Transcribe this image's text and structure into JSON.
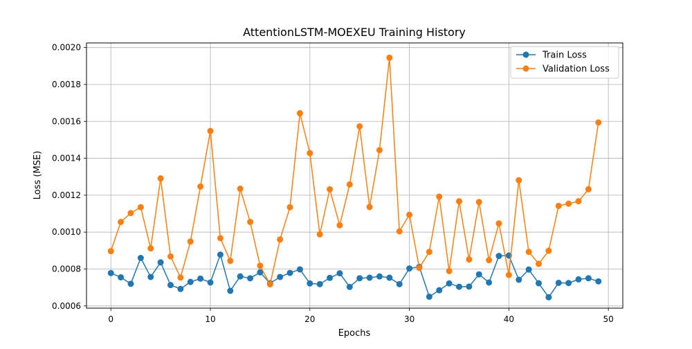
{
  "chart_data": {
    "type": "line",
    "title": "AttentionLSTM-MOEXEU Training History",
    "xlabel": "Epochs",
    "ylabel": "Loss (MSE)",
    "xlim": [
      -2.45,
      51.45
    ],
    "ylim": [
      0.000588,
      0.002025
    ],
    "x_ticks": [
      0,
      10,
      20,
      30,
      40,
      50
    ],
    "x_tick_labels": [
      "0",
      "10",
      "20",
      "30",
      "40",
      "50"
    ],
    "y_ticks": [
      0.0006,
      0.0008,
      0.001,
      0.0012,
      0.0014,
      0.0016,
      0.0018,
      0.002
    ],
    "y_tick_labels": [
      "0.0006",
      "0.0008",
      "0.0010",
      "0.0012",
      "0.0014",
      "0.0016",
      "0.0018",
      "0.0020"
    ],
    "grid": true,
    "legend_position": "top-right",
    "x": [
      0,
      1,
      2,
      3,
      4,
      5,
      6,
      7,
      8,
      9,
      10,
      11,
      12,
      13,
      14,
      15,
      16,
      17,
      18,
      19,
      20,
      21,
      22,
      23,
      24,
      25,
      26,
      27,
      28,
      29,
      30,
      31,
      32,
      33,
      34,
      35,
      36,
      37,
      38,
      39,
      40,
      41,
      42,
      43,
      44,
      45,
      46,
      47,
      48,
      49
    ],
    "series": [
      {
        "name": "Train Loss",
        "color": "#1f77b4",
        "values": [
          0.000778,
          0.000755,
          0.00072,
          0.00086,
          0.000757,
          0.000836,
          0.000713,
          0.000692,
          0.00073,
          0.000748,
          0.000727,
          0.000878,
          0.000682,
          0.00076,
          0.00075,
          0.000782,
          0.000723,
          0.000757,
          0.000779,
          0.000798,
          0.000722,
          0.000718,
          0.000752,
          0.000777,
          0.000703,
          0.00075,
          0.000753,
          0.00076,
          0.000753,
          0.000718,
          0.000803,
          0.000812,
          0.00065,
          0.000685,
          0.000722,
          0.000704,
          0.000705,
          0.000771,
          0.000727,
          0.000871,
          0.000873,
          0.000742,
          0.000797,
          0.000723,
          0.000647,
          0.000725,
          0.000724,
          0.000744,
          0.00075,
          0.000733
        ]
      },
      {
        "name": "Validation Loss",
        "color": "#ff7f0e",
        "values": [
          0.000897,
          0.001055,
          0.001103,
          0.001135,
          0.000912,
          0.001291,
          0.000868,
          0.000754,
          0.000949,
          0.001247,
          0.001548,
          0.000967,
          0.000844,
          0.001235,
          0.001055,
          0.000818,
          0.000717,
          0.00096,
          0.001135,
          0.001644,
          0.001428,
          0.000988,
          0.001232,
          0.001037,
          0.001258,
          0.001573,
          0.001136,
          0.001444,
          0.001945,
          0.001004,
          0.001094,
          0.000806,
          0.000893,
          0.001192,
          0.000789,
          0.001167,
          0.000852,
          0.001163,
          0.000848,
          0.001047,
          0.000768,
          0.001281,
          0.000893,
          0.000828,
          0.000899,
          0.001142,
          0.001154,
          0.001167,
          0.001232,
          0.001594
        ]
      }
    ]
  }
}
